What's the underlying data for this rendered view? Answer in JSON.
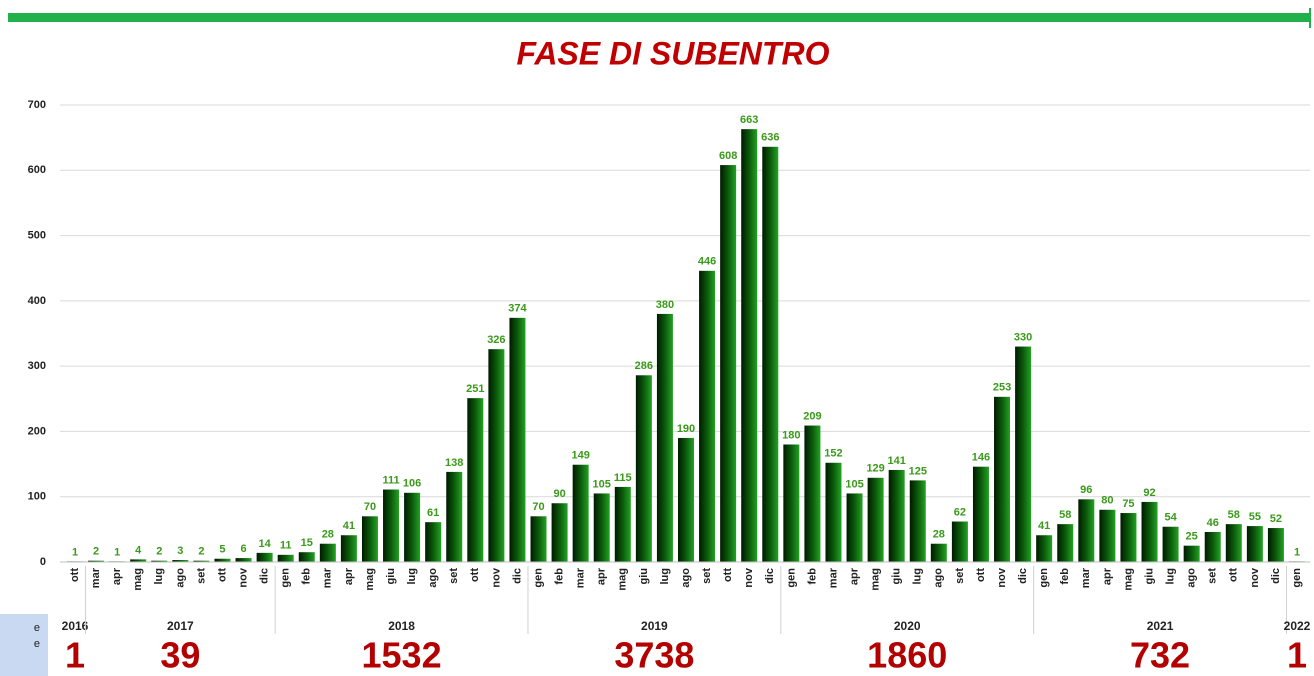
{
  "chart_data": {
    "type": "bar",
    "title": "FASE DI SUBENTRO",
    "groups": [
      {
        "year": "2016",
        "total": 1,
        "categories": [
          "ott"
        ],
        "values": [
          1
        ]
      },
      {
        "year": "2017",
        "total": 39,
        "categories": [
          "mar",
          "apr",
          "mag",
          "lug",
          "ago",
          "set",
          "ott",
          "nov",
          "dic"
        ],
        "values": [
          2,
          1,
          4,
          2,
          3,
          2,
          5,
          6,
          14
        ]
      },
      {
        "year": "2018",
        "total": 1532,
        "categories": [
          "gen",
          "feb",
          "mar",
          "apr",
          "mag",
          "giu",
          "lug",
          "ago",
          "set",
          "ott",
          "nov",
          "dic"
        ],
        "values": [
          11,
          15,
          28,
          41,
          70,
          111,
          106,
          61,
          138,
          251,
          326,
          374
        ]
      },
      {
        "year": "2019",
        "total": 3738,
        "categories": [
          "gen",
          "feb",
          "mar",
          "apr",
          "mag",
          "giu",
          "lug",
          "ago",
          "set",
          "ott",
          "nov",
          "dic"
        ],
        "values": [
          70,
          90,
          149,
          105,
          115,
          286,
          380,
          190,
          446,
          608,
          663,
          636
        ]
      },
      {
        "year": "2020",
        "total": 1860,
        "categories": [
          "gen",
          "feb",
          "mar",
          "apr",
          "mag",
          "giu",
          "lug",
          "ago",
          "set",
          "ott",
          "nov",
          "dic"
        ],
        "values": [
          180,
          209,
          152,
          105,
          129,
          141,
          125,
          28,
          62,
          146,
          253,
          330
        ]
      },
      {
        "year": "2021",
        "total": 732,
        "categories": [
          "gen",
          "feb",
          "mar",
          "apr",
          "mag",
          "giu",
          "lug",
          "ago",
          "set",
          "ott",
          "nov",
          "dic"
        ],
        "values": [
          41,
          58,
          96,
          80,
          75,
          92,
          54,
          25,
          46,
          58,
          55,
          52
        ]
      },
      {
        "year": "2022",
        "total": 1,
        "categories": [
          "gen"
        ],
        "values": [
          1
        ]
      }
    ],
    "ylim": [
      0,
      700
    ],
    "yticks": [
      0,
      100,
      200,
      300,
      400,
      500,
      600,
      700
    ],
    "grid": true
  },
  "side_note": [
    "e",
    "e"
  ]
}
